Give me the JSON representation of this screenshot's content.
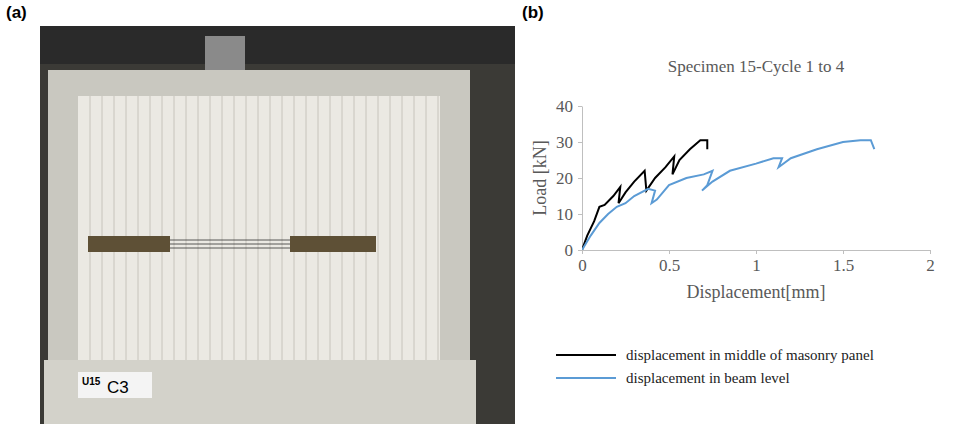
{
  "photo": {
    "label": "(a)",
    "texts": [
      "U15",
      "C3"
    ]
  },
  "chart_data": {
    "type": "line",
    "label": "(b)",
    "title": "Specimen 15-Cycle 1 to 4",
    "x_label": "Displacement[mm]",
    "y_label": "Load [kN]",
    "xlim": [
      0,
      2
    ],
    "xticks": [
      0,
      0.5,
      1,
      1.5,
      2
    ],
    "ylim": [
      0,
      40
    ],
    "yticks": [
      0,
      10,
      20,
      30,
      40
    ],
    "grid": false,
    "legend": "bottom",
    "series": [
      {
        "name": "displacement in middle of masonry panel",
        "color": "#000000",
        "x": [
          0,
          0.03,
          0.07,
          0.1,
          0.13,
          0.18,
          0.22,
          0.21,
          0.25,
          0.3,
          0.36,
          0.37,
          0.42,
          0.48,
          0.53,
          0.52,
          0.56,
          0.62,
          0.68,
          0.72,
          0.72
        ],
        "values": [
          0,
          4,
          8,
          12,
          12.5,
          15,
          17.5,
          13,
          16,
          19,
          22,
          16.5,
          20,
          23,
          26,
          21,
          25,
          28,
          30.5,
          30.5,
          28
        ]
      },
      {
        "name": "displacement in beam level",
        "color": "#5b9bd5",
        "x": [
          0,
          0.05,
          0.1,
          0.15,
          0.2,
          0.25,
          0.3,
          0.38,
          0.42,
          0.4,
          0.43,
          0.5,
          0.6,
          0.7,
          0.75,
          0.72,
          0.69,
          0.75,
          0.85,
          1.0,
          1.1,
          1.15,
          1.13,
          1.2,
          1.35,
          1.5,
          1.6,
          1.66,
          1.68
        ],
        "values": [
          0,
          4,
          7.5,
          10,
          12,
          13,
          15,
          17,
          16.5,
          13,
          14,
          18,
          20,
          21,
          22,
          18,
          16.5,
          19,
          22,
          24,
          25.5,
          25.5,
          23,
          25.5,
          28,
          30,
          30.5,
          30.5,
          28
        ]
      }
    ]
  }
}
